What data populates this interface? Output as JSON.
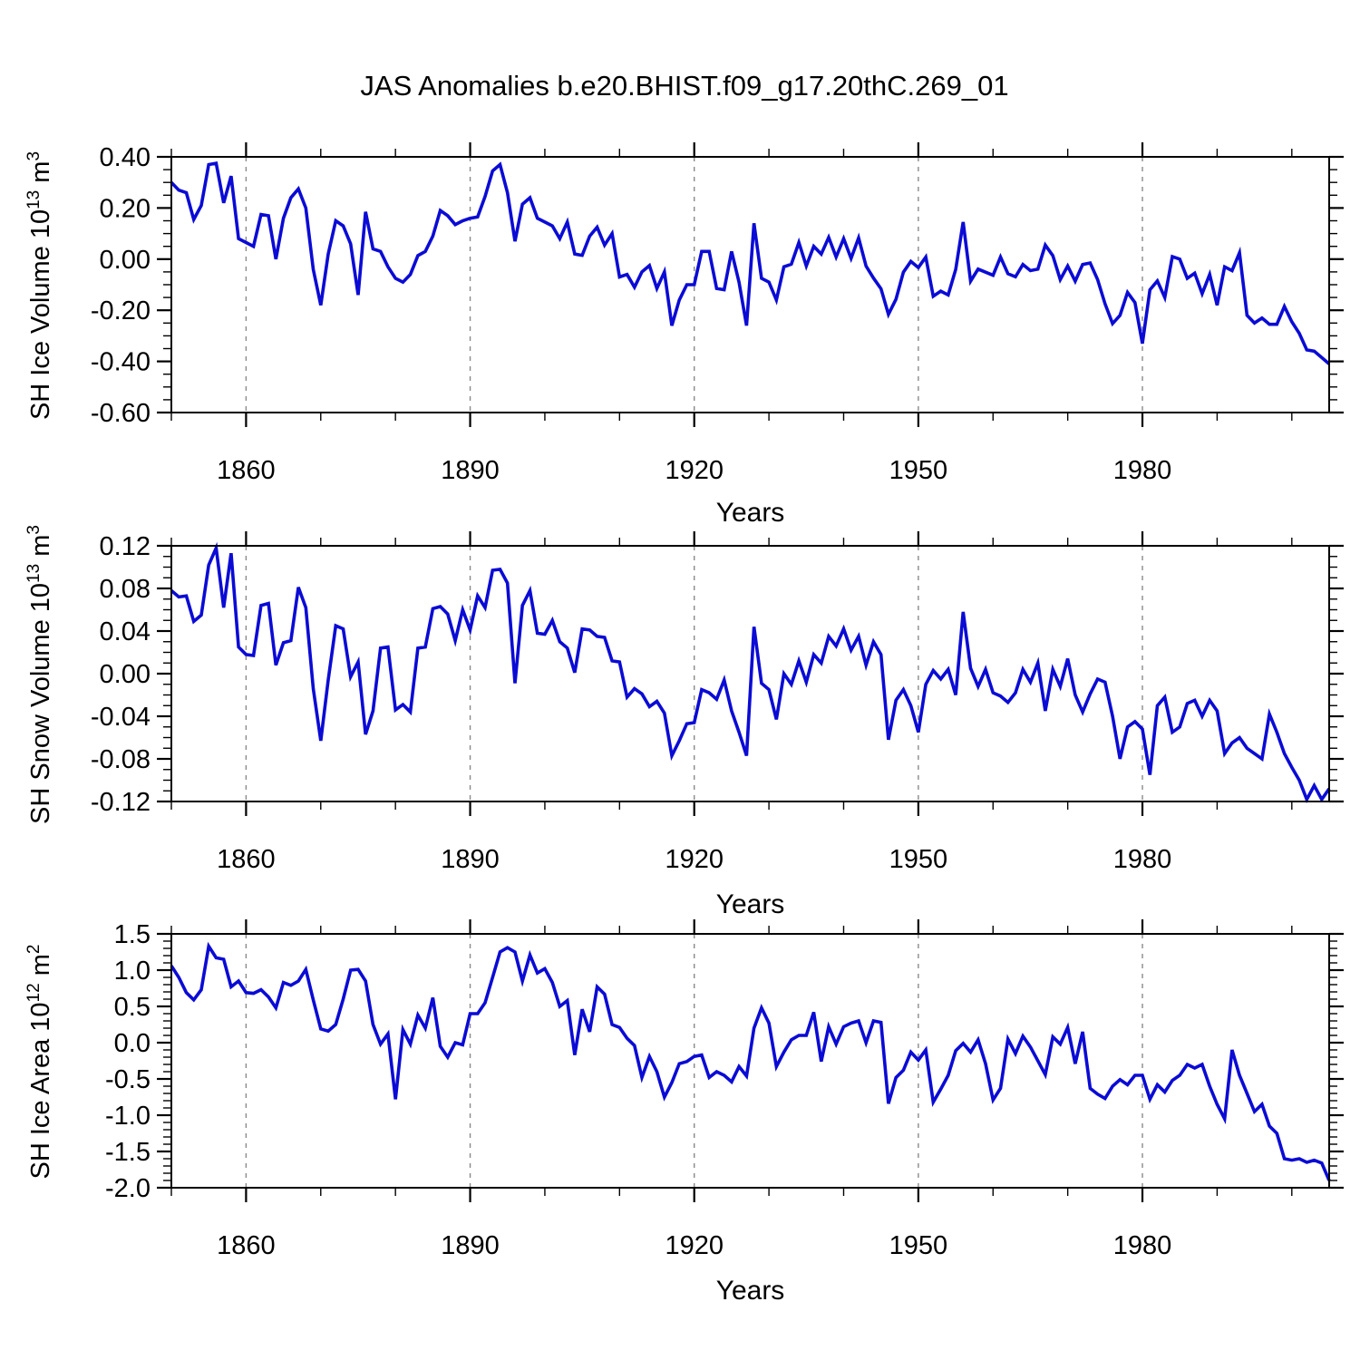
{
  "title": "JAS Anomalies b.e20.BHIST.f09_g17.20thC.269_01",
  "colors": {
    "line": "#0b0bd5",
    "grid": "#8a8a8a",
    "frame": "#000000",
    "background": "#ffffff"
  },
  "chart_data": [
    {
      "type": "line",
      "ylabel": {
        "text": "SH Ice Volume 10",
        "exp": "13",
        "unit": " m",
        "unit_exp": "3"
      },
      "xlabel": "Years",
      "x_range": [
        1850,
        2005
      ],
      "x_tick_labels": [
        "1860",
        "1890",
        "1920",
        "1950",
        "1980"
      ],
      "x_minor_step": 10,
      "gridlines_at": [
        1860,
        1890,
        1920,
        1950,
        1980
      ],
      "ylim": [
        -0.6,
        0.4
      ],
      "y_tick_labels": [
        "0.40",
        "0.20",
        "0.00",
        "-0.20",
        "-0.40",
        "-0.60"
      ],
      "y_minor_step": 0.05,
      "legend": "none",
      "grid": "vertical-dashed",
      "values": [
        0.3,
        0.27,
        0.26,
        0.155,
        0.21,
        0.37,
        0.375,
        0.22,
        0.325,
        0.08,
        0.065,
        0.05,
        0.175,
        0.17,
        0.0,
        0.16,
        0.24,
        0.275,
        0.2,
        -0.04,
        -0.18,
        0.02,
        0.15,
        0.13,
        0.06,
        -0.14,
        0.185,
        0.04,
        0.03,
        -0.03,
        -0.075,
        -0.09,
        -0.06,
        0.014,
        0.03,
        0.09,
        0.19,
        0.17,
        0.135,
        0.15,
        0.16,
        0.165,
        0.245,
        0.345,
        0.37,
        0.26,
        0.07,
        0.215,
        0.24,
        0.16,
        0.145,
        0.13,
        0.08,
        0.145,
        0.02,
        0.015,
        0.09,
        0.125,
        0.055,
        0.1,
        -0.07,
        -0.06,
        -0.11,
        -0.05,
        -0.025,
        -0.115,
        -0.05,
        -0.26,
        -0.16,
        -0.1,
        -0.1,
        0.03,
        0.03,
        -0.115,
        -0.12,
        0.03,
        -0.09,
        -0.26,
        0.14,
        -0.075,
        -0.09,
        -0.16,
        -0.03,
        -0.02,
        0.065,
        -0.027,
        0.05,
        0.02,
        0.085,
        0.008,
        0.08,
        0.003,
        0.083,
        -0.027,
        -0.074,
        -0.116,
        -0.216,
        -0.157,
        -0.051,
        -0.009,
        -0.033,
        0.008,
        -0.145,
        -0.125,
        -0.14,
        -0.04,
        0.145,
        -0.086,
        -0.039,
        -0.051,
        -0.063,
        0.008,
        -0.057,
        -0.069,
        -0.021,
        -0.045,
        -0.039,
        0.055,
        0.014,
        -0.08,
        -0.027,
        -0.086,
        -0.021,
        -0.015,
        -0.08,
        -0.175,
        -0.252,
        -0.22,
        -0.13,
        -0.17,
        -0.33,
        -0.12,
        -0.085,
        -0.15,
        0.01,
        0.0,
        -0.075,
        -0.055,
        -0.135,
        -0.06,
        -0.18,
        -0.03,
        -0.045,
        0.025,
        -0.22,
        -0.25,
        -0.23,
        -0.255,
        -0.255,
        -0.185,
        -0.245,
        -0.29,
        -0.355,
        -0.36,
        -0.385,
        -0.41
      ]
    },
    {
      "type": "line",
      "ylabel": {
        "text": "SH Snow Volume 10",
        "exp": "13",
        "unit": " m",
        "unit_exp": "3"
      },
      "xlabel": "Years",
      "x_range": [
        1850,
        2005
      ],
      "x_tick_labels": [
        "1860",
        "1890",
        "1920",
        "1950",
        "1980"
      ],
      "x_minor_step": 10,
      "gridlines_at": [
        1860,
        1890,
        1920,
        1950,
        1980
      ],
      "ylim": [
        -0.12,
        0.12
      ],
      "y_tick_labels": [
        "0.12",
        "0.08",
        "0.04",
        "0.00",
        "-0.04",
        "-0.08",
        "-0.12"
      ],
      "y_minor_step": 0.01,
      "legend": "none",
      "grid": "vertical-dashed",
      "values": [
        0.078,
        0.072,
        0.073,
        0.049,
        0.055,
        0.102,
        0.118,
        0.062,
        0.113,
        0.025,
        0.018,
        0.017,
        0.064,
        0.066,
        0.008,
        0.029,
        0.031,
        0.081,
        0.062,
        -0.014,
        -0.063,
        -0.006,
        0.045,
        0.042,
        -0.003,
        0.011,
        -0.057,
        -0.035,
        0.024,
        0.025,
        -0.034,
        -0.029,
        -0.036,
        0.024,
        0.025,
        0.061,
        0.063,
        0.056,
        0.031,
        0.06,
        0.041,
        0.073,
        0.062,
        0.097,
        0.098,
        0.085,
        -0.009,
        0.064,
        0.078,
        0.038,
        0.037,
        0.05,
        0.03,
        0.024,
        0.001,
        0.042,
        0.041,
        0.035,
        0.034,
        0.012,
        0.011,
        -0.022,
        -0.014,
        -0.019,
        -0.031,
        -0.026,
        -0.037,
        -0.077,
        -0.063,
        -0.047,
        -0.046,
        -0.015,
        -0.018,
        -0.024,
        -0.006,
        -0.035,
        -0.055,
        -0.077,
        0.044,
        -0.009,
        -0.015,
        -0.043,
        0.0,
        -0.01,
        0.012,
        -0.008,
        0.018,
        0.01,
        0.035,
        0.026,
        0.042,
        0.022,
        0.035,
        0.008,
        0.03,
        0.018,
        -0.062,
        -0.025,
        -0.015,
        -0.03,
        -0.055,
        -0.01,
        0.003,
        -0.005,
        0.004,
        -0.02,
        0.058,
        0.005,
        -0.012,
        0.004,
        -0.018,
        -0.021,
        -0.027,
        -0.018,
        0.004,
        -0.008,
        0.01,
        -0.035,
        0.004,
        -0.012,
        0.014,
        -0.02,
        -0.036,
        -0.019,
        -0.005,
        -0.008,
        -0.04,
        -0.08,
        -0.05,
        -0.045,
        -0.052,
        -0.095,
        -0.03,
        -0.022,
        -0.055,
        -0.05,
        -0.028,
        -0.025,
        -0.04,
        -0.025,
        -0.035,
        -0.075,
        -0.065,
        -0.06,
        -0.07,
        -0.075,
        -0.08,
        -0.038,
        -0.055,
        -0.075,
        -0.088,
        -0.1,
        -0.118,
        -0.105,
        -0.118,
        -0.108
      ]
    },
    {
      "type": "line",
      "ylabel": {
        "text": "SH Ice Area 10",
        "exp": "12",
        "unit": " m",
        "unit_exp": "2"
      },
      "xlabel": "Years",
      "x_range": [
        1850,
        2005
      ],
      "x_tick_labels": [
        "1860",
        "1890",
        "1920",
        "1950",
        "1980"
      ],
      "x_minor_step": 10,
      "gridlines_at": [
        1860,
        1890,
        1920,
        1950,
        1980
      ],
      "ylim": [
        -2.0,
        1.5
      ],
      "y_tick_labels": [
        "1.5",
        "1.0",
        "0.5",
        "0.0",
        "-0.5",
        "-1.0",
        "-1.5",
        "-2.0"
      ],
      "y_minor_step": 0.1,
      "legend": "none",
      "grid": "vertical-dashed",
      "values": [
        1.06,
        0.9,
        0.69,
        0.59,
        0.73,
        1.33,
        1.17,
        1.15,
        0.77,
        0.85,
        0.69,
        0.68,
        0.73,
        0.63,
        0.48,
        0.83,
        0.79,
        0.85,
        1.01,
        0.59,
        0.19,
        0.16,
        0.25,
        0.6,
        1.0,
        1.01,
        0.85,
        0.25,
        -0.02,
        0.12,
        -0.78,
        0.18,
        -0.02,
        0.38,
        0.2,
        0.62,
        -0.05,
        -0.2,
        0.0,
        -0.03,
        0.4,
        0.4,
        0.55,
        0.9,
        1.25,
        1.31,
        1.25,
        0.85,
        1.21,
        0.96,
        1.02,
        0.83,
        0.5,
        0.58,
        -0.17,
        0.46,
        0.15,
        0.77,
        0.67,
        0.25,
        0.21,
        0.06,
        -0.04,
        -0.48,
        -0.19,
        -0.4,
        -0.75,
        -0.55,
        -0.29,
        -0.26,
        -0.19,
        -0.17,
        -0.48,
        -0.4,
        -0.45,
        -0.54,
        -0.33,
        -0.46,
        0.2,
        0.48,
        0.27,
        -0.33,
        -0.13,
        0.04,
        0.1,
        0.1,
        0.42,
        -0.26,
        0.22,
        -0.02,
        0.22,
        0.27,
        0.3,
        0.0,
        0.3,
        0.28,
        -0.84,
        -0.48,
        -0.38,
        -0.13,
        -0.24,
        -0.1,
        -0.82,
        -0.64,
        -0.45,
        -0.11,
        -0.01,
        -0.13,
        0.04,
        -0.29,
        -0.79,
        -0.63,
        0.05,
        -0.15,
        0.09,
        -0.06,
        -0.25,
        -0.44,
        0.08,
        -0.02,
        0.21,
        -0.29,
        0.15,
        -0.63,
        -0.71,
        -0.77,
        -0.6,
        -0.51,
        -0.58,
        -0.45,
        -0.45,
        -0.78,
        -0.58,
        -0.68,
        -0.52,
        -0.45,
        -0.3,
        -0.35,
        -0.3,
        -0.6,
        -0.85,
        -1.05,
        -0.1,
        -0.45,
        -0.7,
        -0.95,
        -0.85,
        -1.15,
        -1.25,
        -1.6,
        -1.62,
        -1.6,
        -1.65,
        -1.62,
        -1.66,
        -1.9
      ]
    }
  ]
}
